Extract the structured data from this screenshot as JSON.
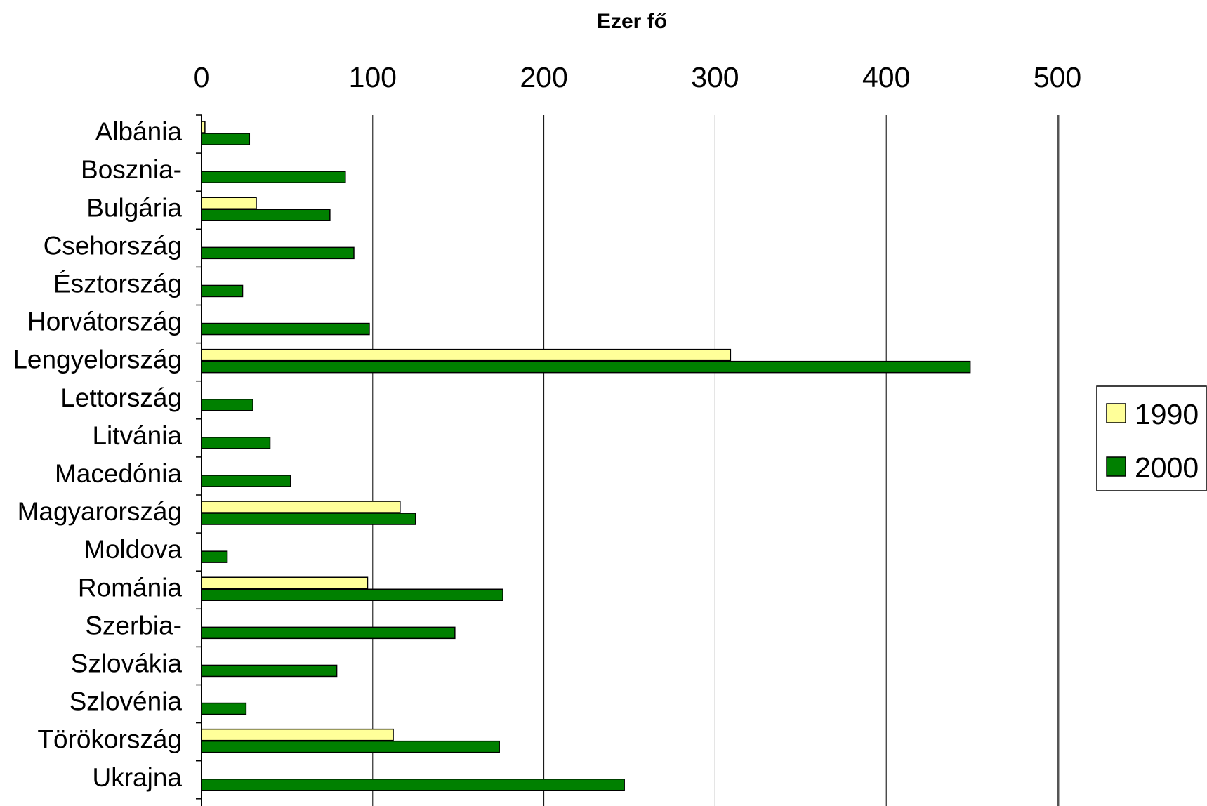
{
  "chart_data": {
    "type": "bar",
    "orientation": "horizontal",
    "title": "Ezer fő",
    "xlim": [
      0,
      500
    ],
    "xticks": [
      "0",
      "100",
      "200",
      "300",
      "400",
      "500"
    ],
    "grid": true,
    "legend_position": "right",
    "categories": [
      "Albánia",
      "Bosznia-",
      "Bulgária",
      "Csehország",
      "Észtország",
      "Horvátország",
      "Lengyelország",
      "Lettország",
      "Litvánia",
      "Macedónia",
      "Magyarország",
      "Moldova",
      "Románia",
      "Szerbia-",
      "Szlovákia",
      "Szlovénia",
      "Törökország",
      "Ukrajna"
    ],
    "series": [
      {
        "name": "1990",
        "color": "#ffff99",
        "values": [
          2,
          0,
          32,
          0,
          0,
          0,
          309,
          0,
          0,
          0,
          116,
          0,
          97,
          0,
          0,
          0,
          112,
          0
        ]
      },
      {
        "name": "2000",
        "color": "#008000",
        "values": [
          28,
          84,
          75,
          89,
          24,
          98,
          449,
          30,
          40,
          52,
          125,
          15,
          176,
          148,
          79,
          26,
          174,
          247
        ]
      }
    ]
  }
}
